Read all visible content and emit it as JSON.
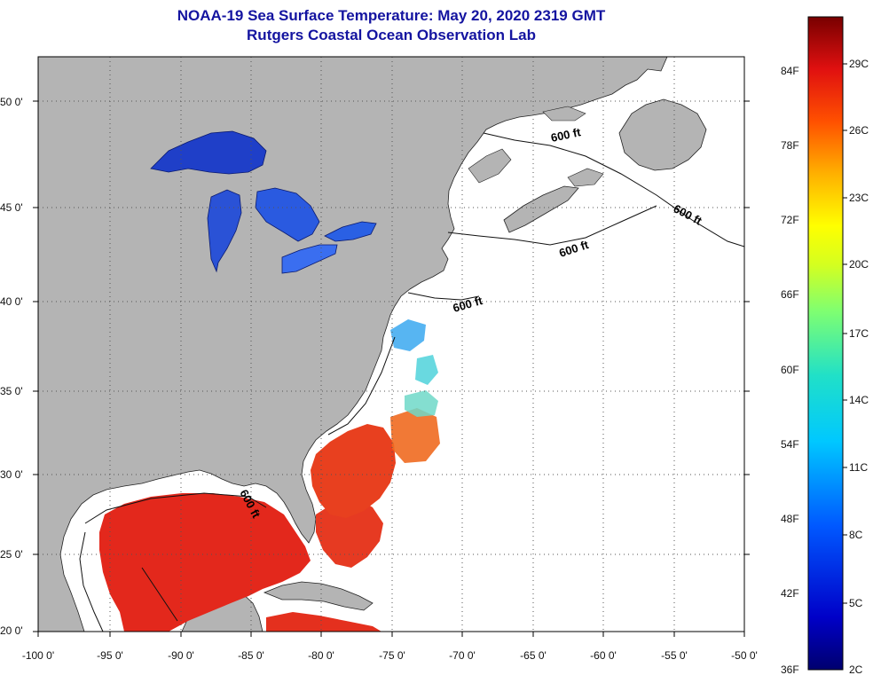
{
  "title": "NOAA-19 Sea Surface Temperature:  May 20, 2020 2319 GMT",
  "subtitle": "Rutgers Coastal Ocean Observation Lab",
  "lat_labels": [
    "50 0'",
    "45 0'",
    "40 0'",
    "35 0'",
    "30 0'",
    "25 0'",
    "20 0'"
  ],
  "lon_labels": [
    "-100 0'",
    "-95 0'",
    "-90 0'",
    "-85 0'",
    "-80 0'",
    "-75 0'",
    "-70 0'",
    "-65 0'",
    "-60 0'",
    "-55 0'",
    "-50 0'"
  ],
  "isobath_label": "600 ft",
  "colorbar": {
    "fahrenheit_labels": [
      "84F",
      "78F",
      "72F",
      "66F",
      "60F",
      "54F",
      "48F",
      "42F",
      "36F"
    ],
    "celsius_labels": [
      "29C",
      "26C",
      "23C",
      "20C",
      "17C",
      "14C",
      "11C",
      "8C",
      "5C",
      "2C"
    ]
  },
  "colors": {
    "title": "#1414a0",
    "land": "#b4b4b4",
    "ocean": "#ffffff",
    "sst_warm": "#e8261a",
    "lake_cold": "#1a3ad0"
  }
}
